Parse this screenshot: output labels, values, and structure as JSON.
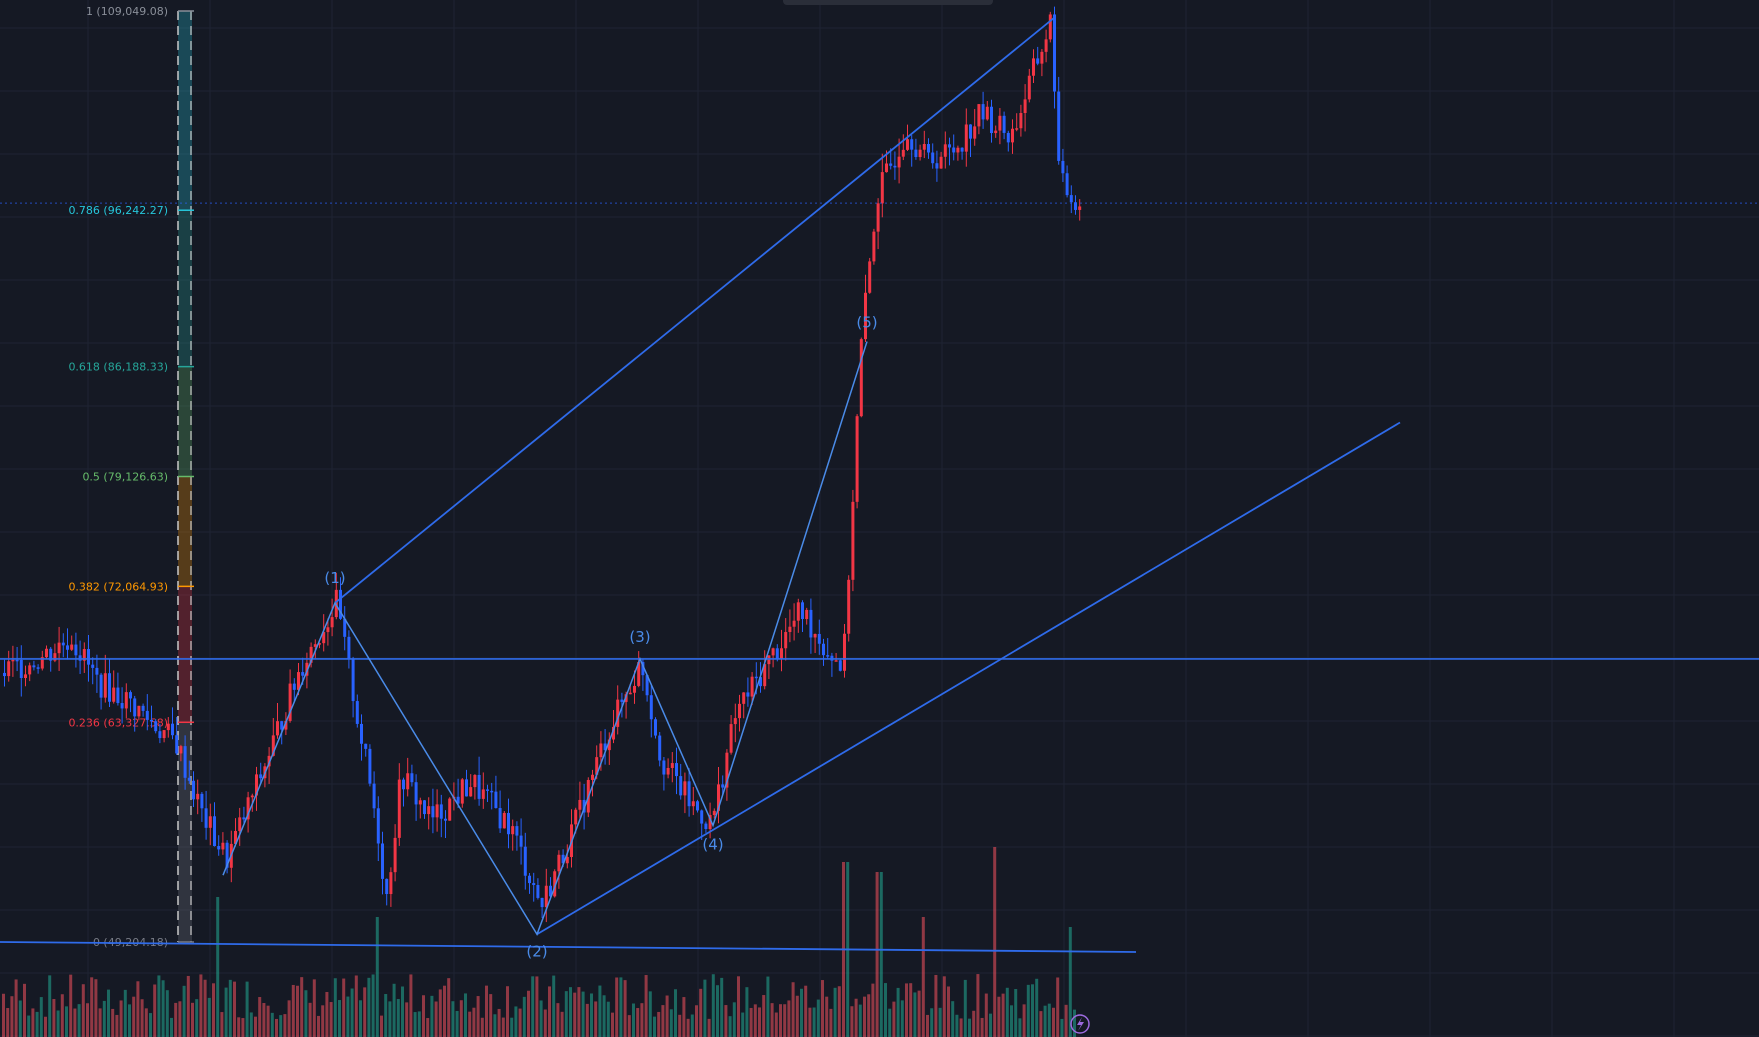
{
  "chart_data": {
    "type": "candlestick",
    "ylim": [
      44000,
      110000
    ],
    "fib_levels": [
      {
        "ratio": "1",
        "price": 109049.08,
        "label": "1 (109,049.08)",
        "color": "#8a8f99"
      },
      {
        "ratio": "0.786",
        "price": 96242.27,
        "label": "0.786 (96,242.27)",
        "color": "#26c6da"
      },
      {
        "ratio": "0.618",
        "price": 86188.33,
        "label": "0.618 (86,188.33)",
        "color": "#26a69a"
      },
      {
        "ratio": "0.5",
        "price": 79126.63,
        "label": "0.5 (79,126.63)",
        "color": "#66bb6a"
      },
      {
        "ratio": "0.382",
        "price": 72064.93,
        "label": "0.382 (72,064.93)",
        "color": "#ff9800"
      },
      {
        "ratio": "0.236",
        "price": 63327.58,
        "label": "0.236 (63,327.58)",
        "color": "#f23645"
      },
      {
        "ratio": "0",
        "price": 49204.18,
        "label": "0 (49,204.18)",
        "color": "#787b86"
      }
    ],
    "wave_points": [
      {
        "label": "(1)",
        "price": 71000
      },
      {
        "label": "(2)",
        "price": 49700
      },
      {
        "label": "(3)",
        "price": 67400
      },
      {
        "label": "(4)",
        "price": 56700
      },
      {
        "label": "(5)",
        "price": 87800
      }
    ],
    "horizontal_level": 67400,
    "current_price": 96700,
    "colors": {
      "up": "#f23645",
      "down": "#2962ff",
      "trendline": "#2f6bea",
      "wave": "#4a8be8",
      "vol_up": "#22ab94",
      "vol_down": "#f7525f",
      "grid": "#1f2433",
      "background": "#151924"
    }
  },
  "icons": {
    "replay": "lightning-icon"
  }
}
